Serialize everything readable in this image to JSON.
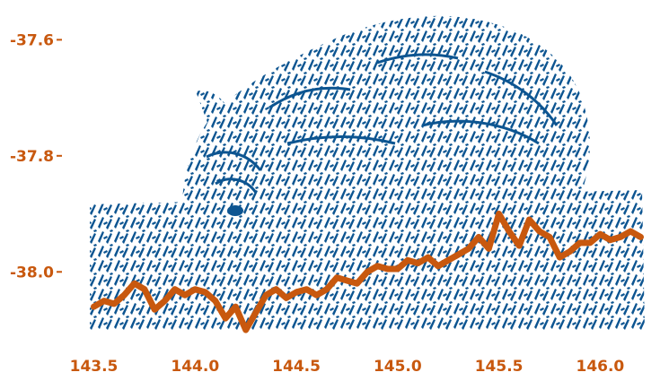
{
  "chart_data": {
    "type": "line",
    "title": "",
    "xlabel": "",
    "ylabel": "",
    "xlim": [
      143.48,
      146.22
    ],
    "ylim": [
      -38.1,
      -37.55
    ],
    "x_ticks": [
      143.5,
      144.0,
      144.5,
      145.0,
      145.5,
      146.0
    ],
    "x_tick_labels": [
      "143.5",
      "144.0",
      "144.5",
      "145.0",
      "145.5",
      "146.0"
    ],
    "y_ticks": [
      -37.6,
      -37.8,
      -38.0
    ],
    "y_tick_labels": [
      "-37.6",
      "-37.8",
      "-38.0"
    ],
    "grid": false,
    "legend": "none",
    "background_image": "wombat-silhouette",
    "colors": {
      "line": "#c8580e",
      "ticks": "#c8580e",
      "texture": "#0d5591"
    },
    "series": [
      {
        "x": [
          143.5,
          143.55,
          143.6,
          143.65,
          143.7,
          143.75,
          143.8,
          143.85,
          143.9,
          143.95,
          144.0,
          144.05,
          144.1,
          144.15,
          144.2,
          144.25,
          144.3,
          144.35,
          144.4,
          144.45,
          144.5,
          144.55,
          144.6,
          144.65,
          144.7,
          144.75,
          144.8,
          144.85,
          144.9,
          144.95,
          145.0,
          145.05,
          145.1,
          145.15,
          145.2,
          145.25,
          145.3,
          145.35,
          145.4,
          145.45,
          145.5,
          145.55,
          145.6,
          145.65,
          145.7,
          145.75,
          145.8,
          145.85,
          145.9,
          145.95,
          146.0,
          146.05,
          146.1,
          146.15,
          146.2
        ],
        "y": [
          -38.06,
          -38.05,
          -38.055,
          -38.04,
          -38.02,
          -38.03,
          -38.065,
          -38.05,
          -38.03,
          -38.04,
          -38.03,
          -38.035,
          -38.05,
          -38.08,
          -38.06,
          -38.1,
          -38.07,
          -38.04,
          -38.03,
          -38.045,
          -38.035,
          -38.03,
          -38.04,
          -38.03,
          -38.01,
          -38.015,
          -38.02,
          -38.0,
          -37.99,
          -37.995,
          -37.995,
          -37.98,
          -37.985,
          -37.975,
          -37.99,
          -37.98,
          -37.97,
          -37.96,
          -37.94,
          -37.96,
          -37.9,
          -37.93,
          -37.955,
          -37.91,
          -37.93,
          -37.94,
          -37.975,
          -37.965,
          -37.95,
          -37.95,
          -37.935,
          -37.945,
          -37.94,
          -37.93,
          -37.94
        ]
      }
    ]
  }
}
